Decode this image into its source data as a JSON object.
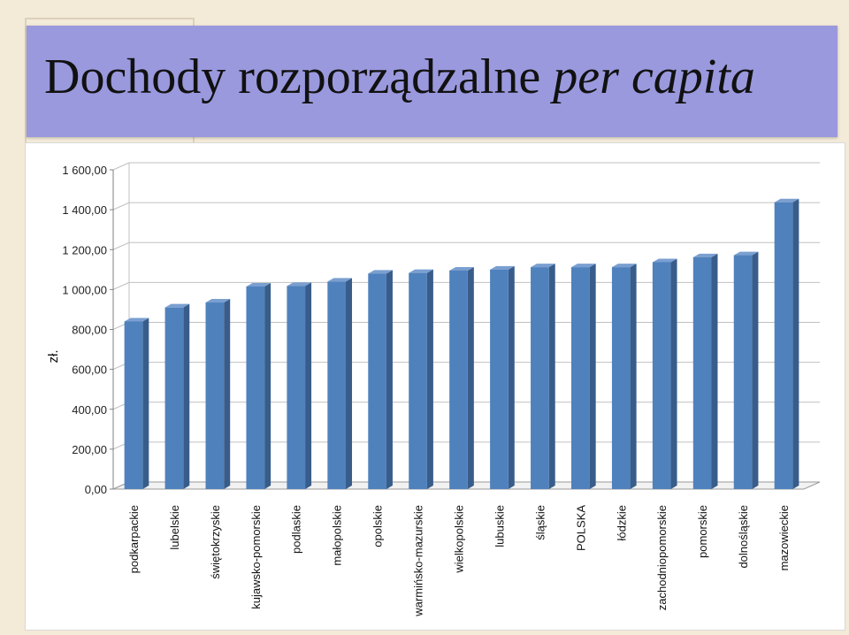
{
  "slide": {
    "title_main": "Dochody rozporządzalne",
    "title_italic": "per capita"
  },
  "colors": {
    "banner": "#9a99de",
    "bar_front": "#4f81bd",
    "bar_side": "#385d8a",
    "bar_top": "#7a9fd0",
    "grid": "#c0c0c0"
  },
  "chart_data": {
    "type": "bar",
    "title": "",
    "xlabel": "",
    "ylabel": "zł.",
    "ylim": [
      0,
      1600
    ],
    "ytick_labels": [
      "0,00",
      "200,00",
      "400,00",
      "600,00",
      "800,00",
      "1 000,00",
      "1 200,00",
      "1 400,00",
      "1 600,00"
    ],
    "grid": true,
    "legend": "none",
    "categories": [
      "podkarpackie",
      "lubelskie",
      "świętokrzyskie",
      "kujawsko-pomorskie",
      "podlaskie",
      "małopolskie",
      "opolskie",
      "warmińsko-mazurskie",
      "wielkopolskie",
      "lubuskie",
      "śląskie",
      "POLSKA",
      "łódzkie",
      "zachodniopomorskie",
      "pomorskie",
      "dolnośląskie",
      "mazowieckie"
    ],
    "values": [
      840,
      910,
      935,
      1015,
      1018,
      1040,
      1080,
      1083,
      1095,
      1100,
      1112,
      1112,
      1112,
      1137,
      1162,
      1172,
      1437
    ]
  }
}
